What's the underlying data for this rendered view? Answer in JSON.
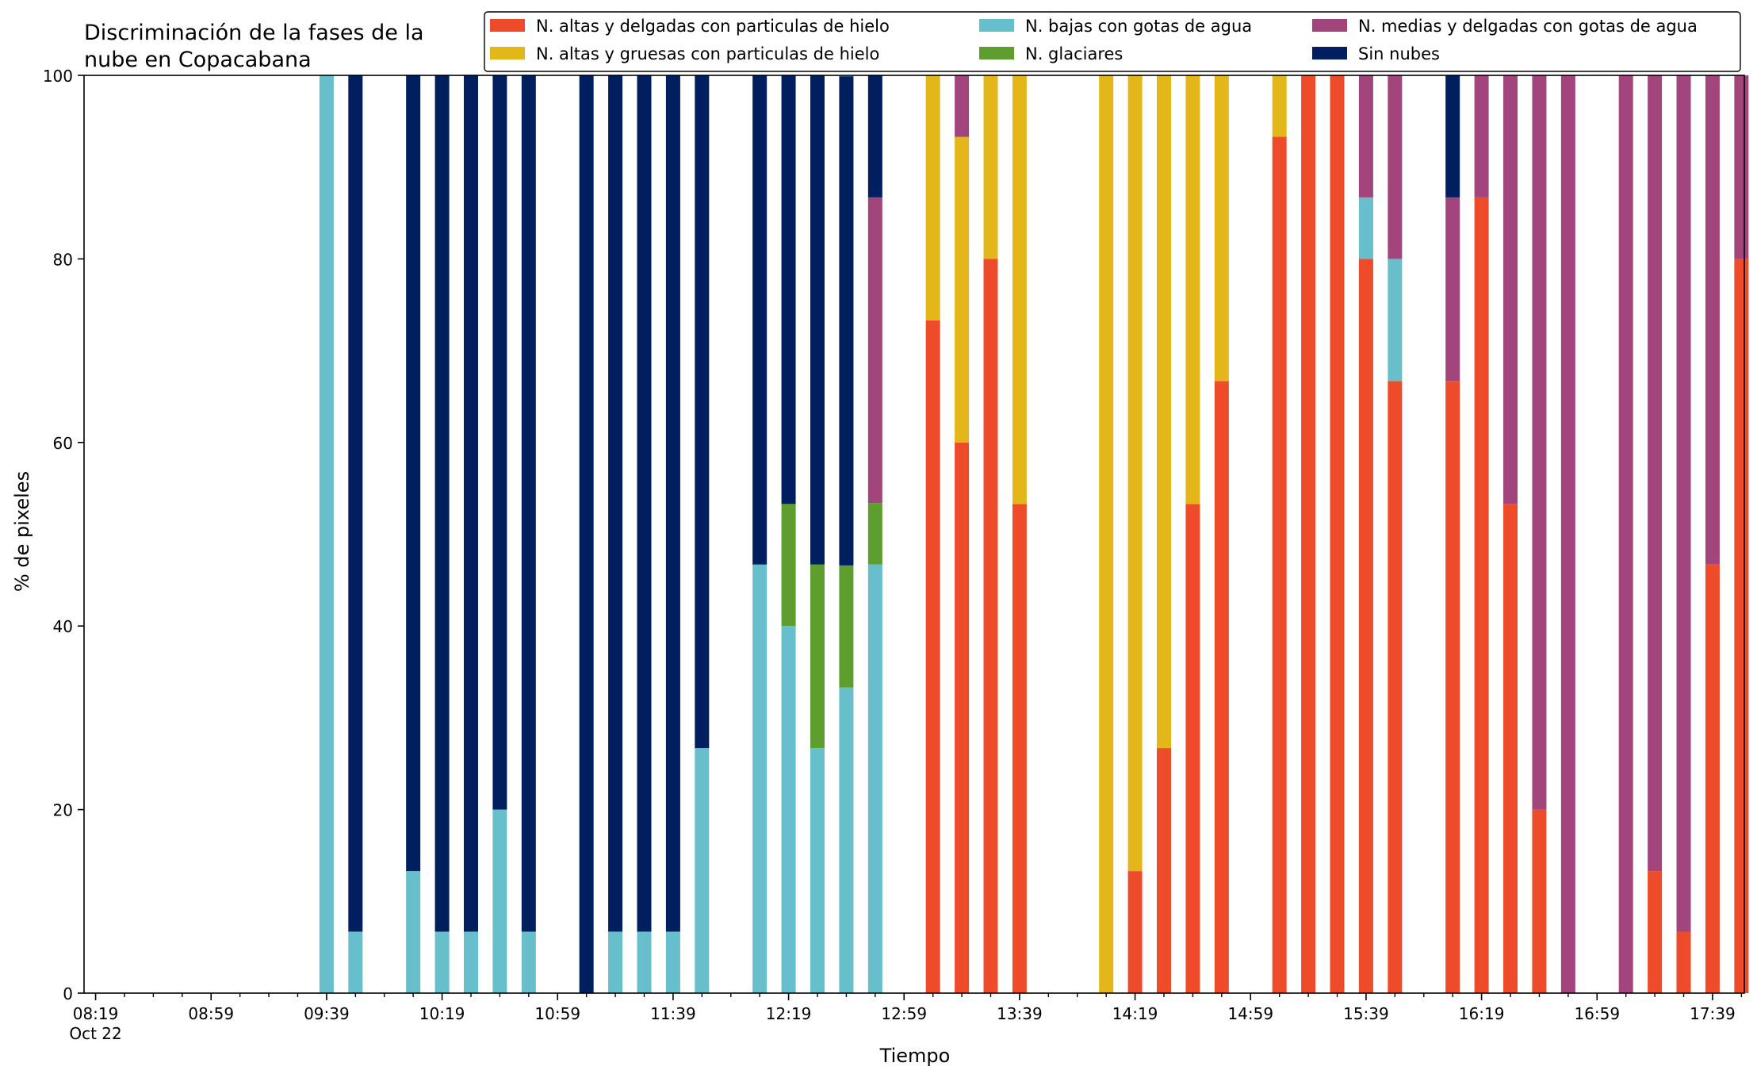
{
  "chart_data": {
    "type": "bar",
    "stacked": true,
    "title_lines": [
      "Discriminación de la fases de la",
      "nube en Copacabana"
    ],
    "xlabel": "Tiempo",
    "ylabel": "% de pixeles",
    "ylim": [
      0,
      100
    ],
    "yticks": [
      0,
      20,
      40,
      60,
      80,
      100
    ],
    "x_domain": [
      "08:15",
      "17:50"
    ],
    "x_major_ticks": [
      {
        "time": "08:19",
        "label": "08:19",
        "sublabel": "Oct 22"
      },
      {
        "time": "08:59",
        "label": "08:59"
      },
      {
        "time": "09:39",
        "label": "09:39"
      },
      {
        "time": "10:19",
        "label": "10:19"
      },
      {
        "time": "10:59",
        "label": "10:59"
      },
      {
        "time": "11:39",
        "label": "11:39"
      },
      {
        "time": "12:19",
        "label": "12:19"
      },
      {
        "time": "12:59",
        "label": "12:59"
      },
      {
        "time": "13:39",
        "label": "13:39"
      },
      {
        "time": "14:19",
        "label": "14:19"
      },
      {
        "time": "14:59",
        "label": "14:59"
      },
      {
        "time": "15:39",
        "label": "15:39"
      },
      {
        "time": "16:19",
        "label": "16:19"
      },
      {
        "time": "16:59",
        "label": "16:59"
      },
      {
        "time": "17:39",
        "label": "17:39"
      }
    ],
    "x_minor_tick_minutes": 10,
    "grid": false,
    "legend_position": "top",
    "series": [
      {
        "key": "altas_delgadas_hielo",
        "name": "N. altas y delgadas con particulas de hielo",
        "color": "#ee4b2b"
      },
      {
        "key": "altas_gruesas_hielo",
        "name": "N. altas y gruesas con particulas de hielo",
        "color": "#e3b719"
      },
      {
        "key": "bajas_agua",
        "name": "N. bajas con gotas de agua",
        "color": "#66bfcb"
      },
      {
        "key": "glaciares",
        "name": "N. glaciares",
        "color": "#5e9e2f"
      },
      {
        "key": "medias_delgadas_agua",
        "name": "N. medias y delgadas con gotas de agua",
        "color": "#a3457d"
      },
      {
        "key": "sin_nubes",
        "name": "Sin nubes",
        "color": "#011f5e"
      }
    ],
    "bars": [
      {
        "time": "09:39",
        "bajas_agua": 100
      },
      {
        "time": "09:49",
        "bajas_agua": 6.7,
        "sin_nubes": 93.3
      },
      {
        "time": "10:09",
        "bajas_agua": 13.3,
        "sin_nubes": 86.7
      },
      {
        "time": "10:19",
        "bajas_agua": 6.7,
        "sin_nubes": 93.3
      },
      {
        "time": "10:29",
        "bajas_agua": 6.7,
        "sin_nubes": 93.3
      },
      {
        "time": "10:39",
        "bajas_agua": 20,
        "sin_nubes": 80
      },
      {
        "time": "10:49",
        "bajas_agua": 6.7,
        "sin_nubes": 93.3
      },
      {
        "time": "11:09",
        "sin_nubes": 100
      },
      {
        "time": "11:19",
        "bajas_agua": 6.7,
        "sin_nubes": 93.3
      },
      {
        "time": "11:29",
        "bajas_agua": 6.7,
        "sin_nubes": 93.3
      },
      {
        "time": "11:39",
        "bajas_agua": 6.7,
        "sin_nubes": 93.3
      },
      {
        "time": "11:49",
        "bajas_agua": 26.7,
        "sin_nubes": 73.3
      },
      {
        "time": "12:09",
        "bajas_agua": 46.7,
        "sin_nubes": 53.3
      },
      {
        "time": "12:19",
        "bajas_agua": 40,
        "glaciares": 13.3,
        "sin_nubes": 46.7
      },
      {
        "time": "12:29",
        "bajas_agua": 26.7,
        "glaciares": 20,
        "sin_nubes": 53.3
      },
      {
        "time": "12:39",
        "bajas_agua": 33.3,
        "glaciares": 13.3,
        "sin_nubes": 53.3
      },
      {
        "time": "12:49",
        "bajas_agua": 46.7,
        "glaciares": 6.7,
        "medias_delgadas_agua": 33.3,
        "sin_nubes": 13.3
      },
      {
        "time": "13:09",
        "altas_delgadas_hielo": 73.3,
        "altas_gruesas_hielo": 26.7
      },
      {
        "time": "13:19",
        "altas_delgadas_hielo": 60,
        "altas_gruesas_hielo": 33.3,
        "medias_delgadas_agua": 6.7
      },
      {
        "time": "13:29",
        "altas_delgadas_hielo": 80,
        "altas_gruesas_hielo": 20
      },
      {
        "time": "13:39",
        "altas_delgadas_hielo": 53.3,
        "altas_gruesas_hielo": 46.7
      },
      {
        "time": "14:09",
        "altas_gruesas_hielo": 100
      },
      {
        "time": "14:19",
        "altas_delgadas_hielo": 13.3,
        "altas_gruesas_hielo": 86.7
      },
      {
        "time": "14:29",
        "altas_delgadas_hielo": 26.7,
        "altas_gruesas_hielo": 73.3
      },
      {
        "time": "14:39",
        "altas_delgadas_hielo": 53.3,
        "altas_gruesas_hielo": 46.7
      },
      {
        "time": "14:49",
        "altas_delgadas_hielo": 66.7,
        "altas_gruesas_hielo": 33.3
      },
      {
        "time": "15:09",
        "altas_delgadas_hielo": 93.3,
        "altas_gruesas_hielo": 6.7
      },
      {
        "time": "15:19",
        "altas_delgadas_hielo": 100
      },
      {
        "time": "15:29",
        "altas_delgadas_hielo": 100
      },
      {
        "time": "15:39",
        "altas_delgadas_hielo": 80,
        "bajas_agua": 6.7,
        "medias_delgadas_agua": 13.3
      },
      {
        "time": "15:49",
        "altas_delgadas_hielo": 66.7,
        "bajas_agua": 13.3,
        "medias_delgadas_agua": 20
      },
      {
        "time": "16:09",
        "altas_delgadas_hielo": 66.7,
        "medias_delgadas_agua": 20,
        "sin_nubes": 13.3
      },
      {
        "time": "16:19",
        "altas_delgadas_hielo": 86.7,
        "medias_delgadas_agua": 13.3
      },
      {
        "time": "16:29",
        "altas_delgadas_hielo": 53.3,
        "medias_delgadas_agua": 46.7
      },
      {
        "time": "16:39",
        "altas_delgadas_hielo": 20,
        "medias_delgadas_agua": 80
      },
      {
        "time": "16:49",
        "medias_delgadas_agua": 100
      },
      {
        "time": "17:09",
        "medias_delgadas_agua": 100
      },
      {
        "time": "17:19",
        "altas_delgadas_hielo": 13.3,
        "medias_delgadas_agua": 86.7
      },
      {
        "time": "17:29",
        "altas_delgadas_hielo": 6.7,
        "medias_delgadas_agua": 93.3
      },
      {
        "time": "17:39",
        "altas_delgadas_hielo": 46.7,
        "medias_delgadas_agua": 53.3
      },
      {
        "time": "17:49",
        "altas_delgadas_hielo": 80,
        "medias_delgadas_agua": 20
      }
    ]
  }
}
